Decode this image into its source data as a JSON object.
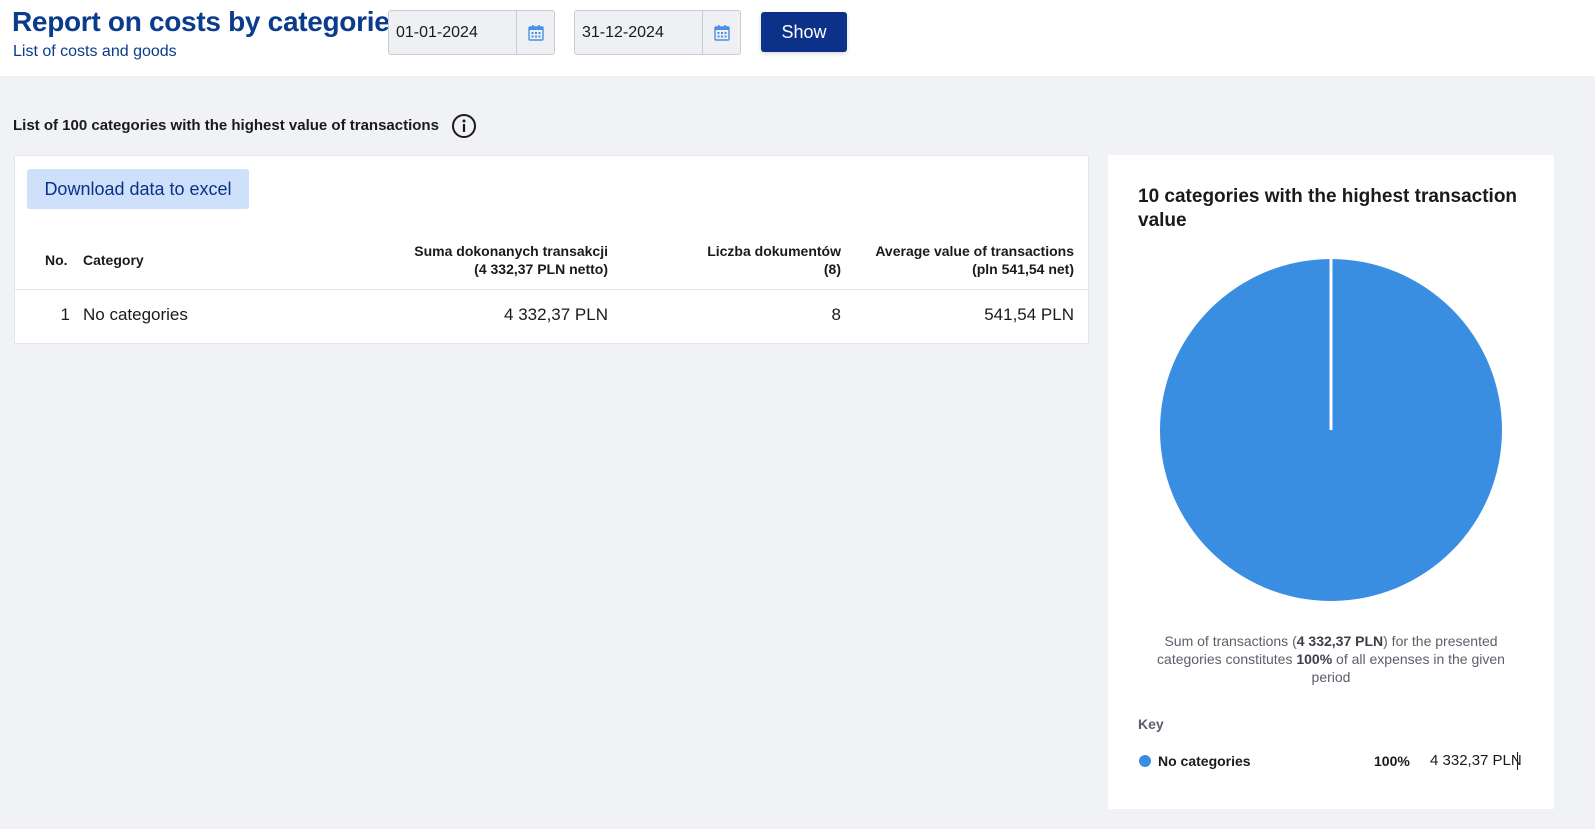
{
  "header": {
    "title": "Report on costs by categories",
    "subtitle": "List of costs and goods",
    "date_from": "01-01-2024",
    "date_to": "31-12-2024",
    "show_label": "Show"
  },
  "section": {
    "title": "List of 100 categories with the highest value of transactions",
    "excel_label": "Download data to excel"
  },
  "table": {
    "headers": {
      "no": "No.",
      "category": "Category",
      "sum_line1": "Suma dokonanych transakcji",
      "sum_line2": "(4 332,37 PLN netto)",
      "docs_line1": "Liczba dokumentów",
      "docs_line2": "(8)",
      "avg_line1": "Average value of transactions",
      "avg_line2": "(pln 541,54 net)"
    },
    "rows": [
      {
        "no": "1",
        "category": "No categories",
        "sum": "4 332,37 PLN",
        "docs": "8",
        "avg": "541,54 PLN"
      }
    ]
  },
  "pie": {
    "title": "10 categories with the highest transaction value",
    "caption_part1": "Sum of transactions (",
    "caption_amount": "4 332,37 PLN",
    "caption_part2": ") for the presented categories constitutes ",
    "caption_pct": "100%",
    "caption_part3": " of all expenses in the given period",
    "key_title": "Key",
    "legend": [
      {
        "name": "No categories",
        "pct": "100%",
        "value": "4 332,37 PLN",
        "color": "#3a8ee2"
      }
    ]
  },
  "chart_data": {
    "type": "pie",
    "categories": [
      "No categories"
    ],
    "values": [
      100
    ],
    "title": "10 categories with the highest transaction value"
  },
  "colors": {
    "brand": "#0b3b8c",
    "button": "#0b3288",
    "excel_button_bg": "#cfe0fb",
    "slice": "#3a8ee2"
  },
  "icons": {
    "calendar": "calendar-icon",
    "info": "info-icon"
  }
}
